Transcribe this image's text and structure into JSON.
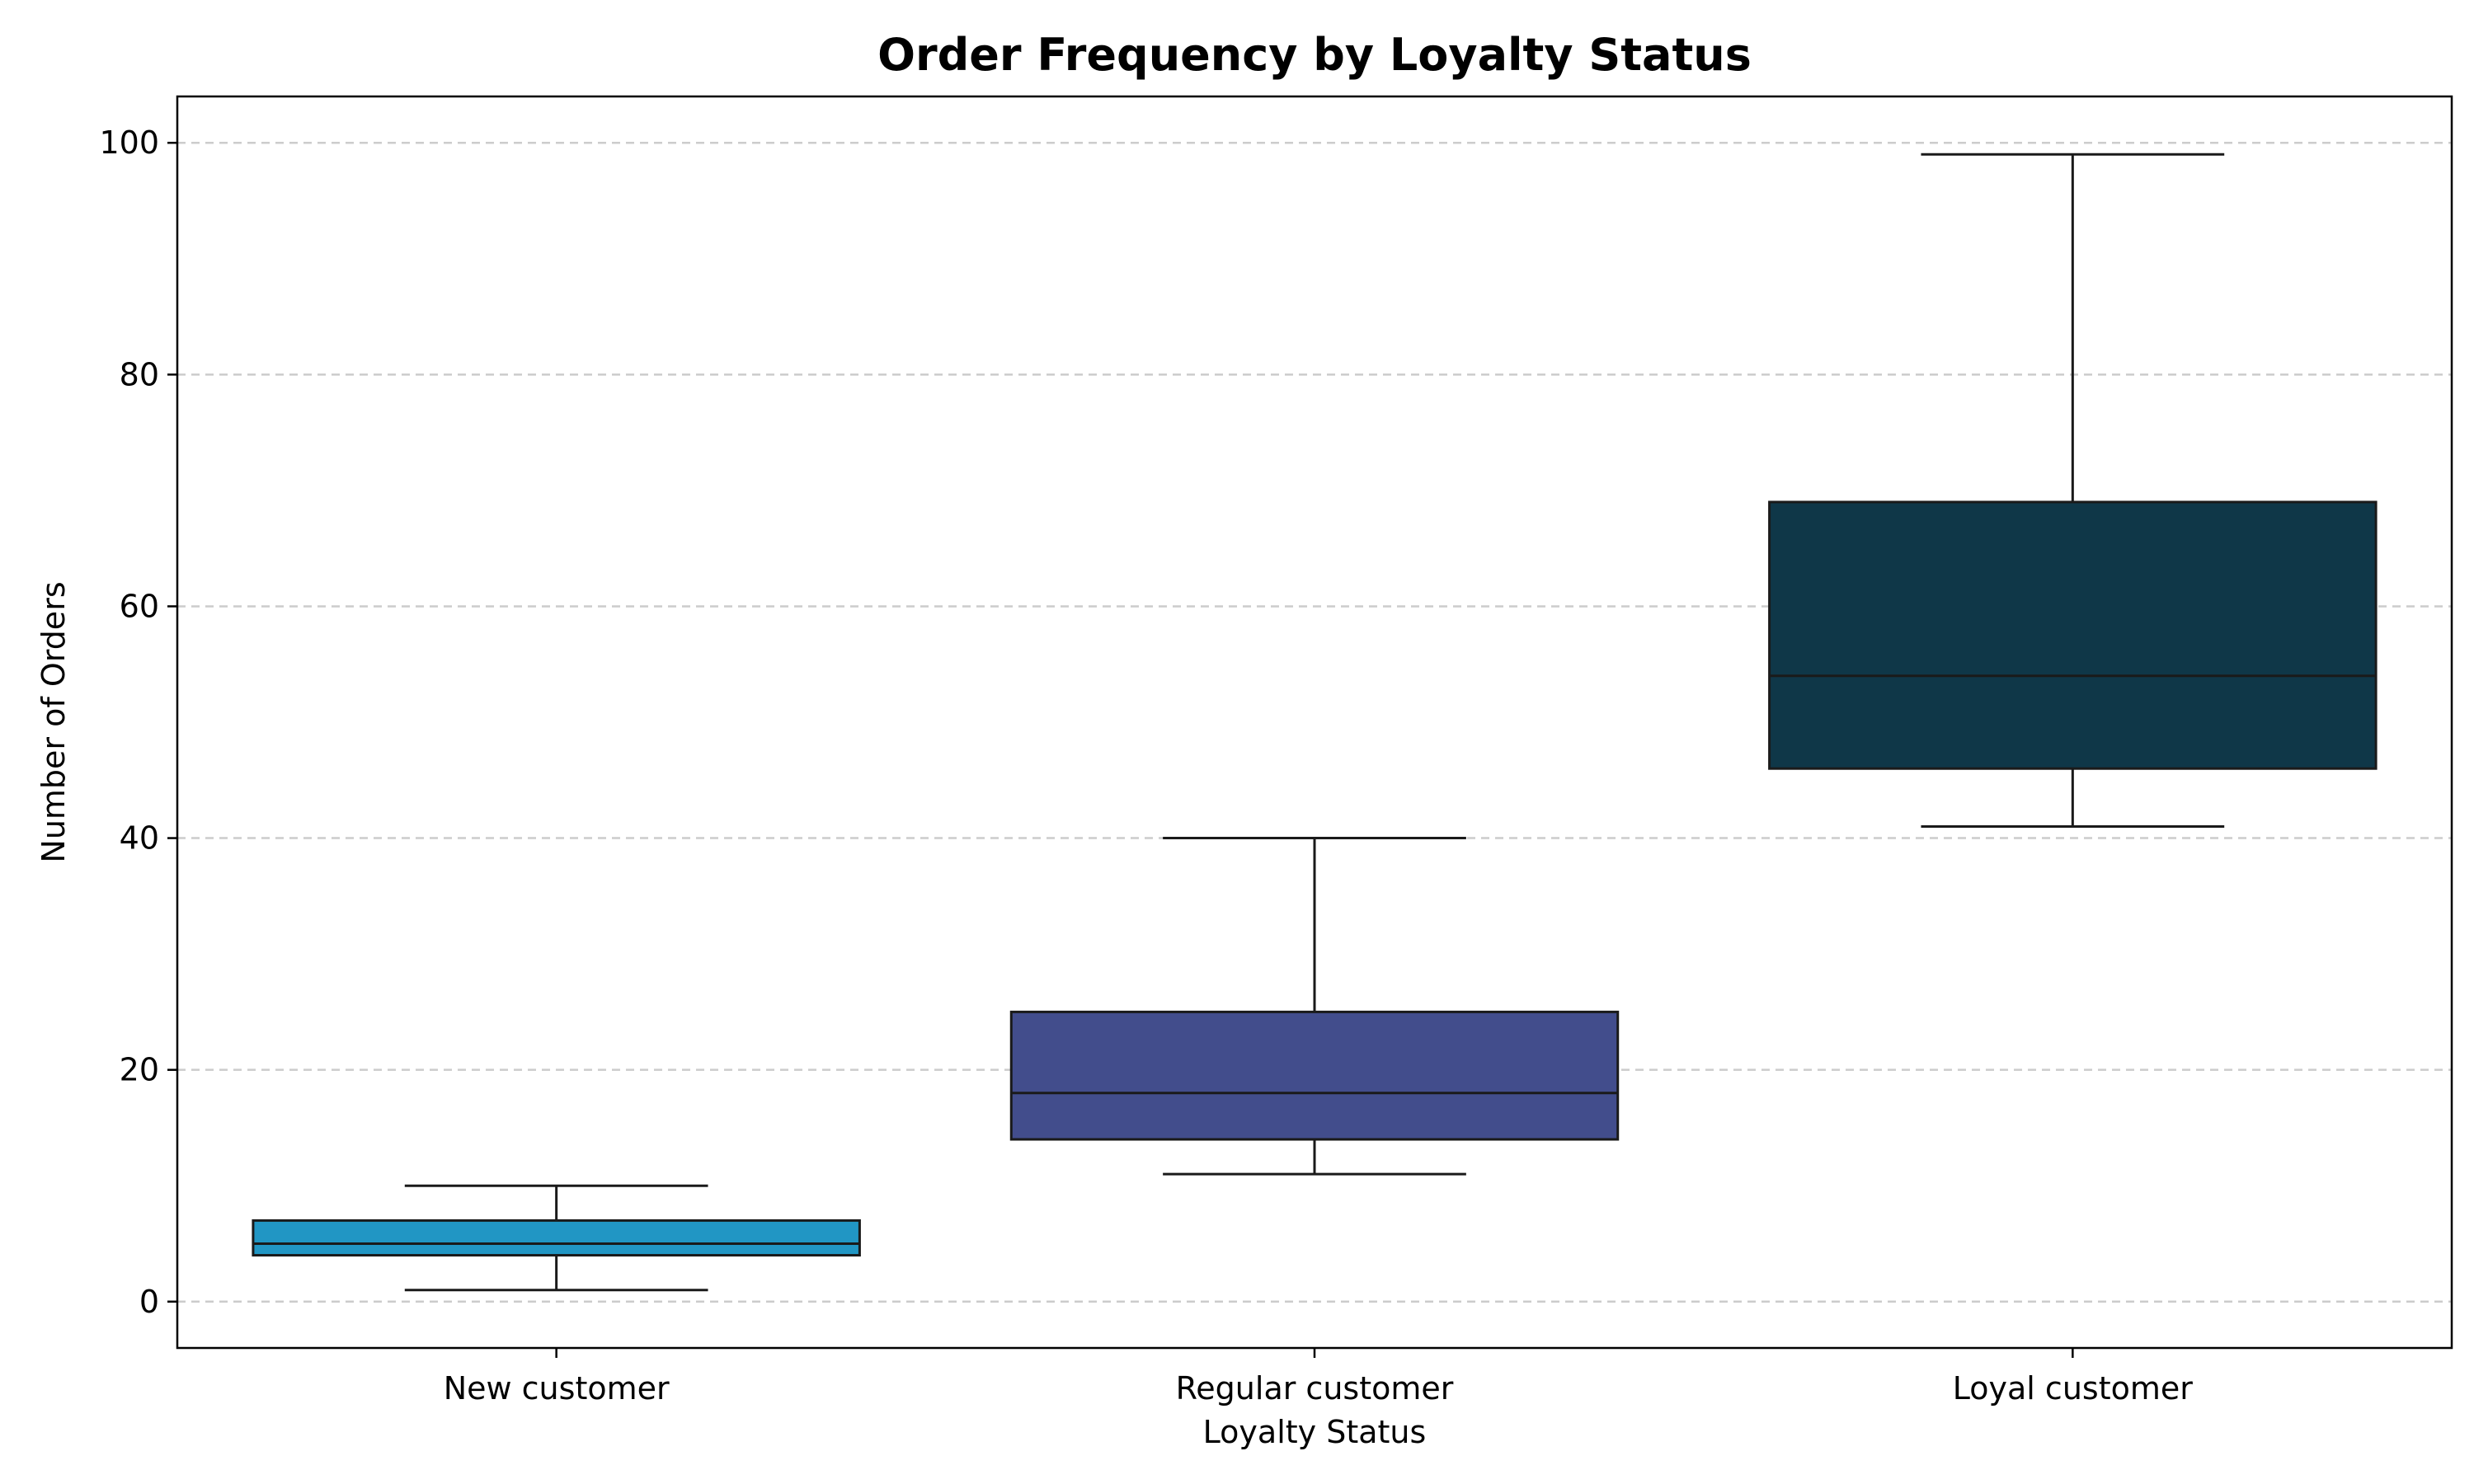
{
  "chart_data": {
    "type": "box",
    "title": "Order Frequency by Loyalty Status",
    "xlabel": "Loyalty Status",
    "ylabel": "Number of Orders",
    "ylim": [
      -4,
      104
    ],
    "yticks": [
      0,
      20,
      40,
      60,
      80,
      100
    ],
    "grid": true,
    "categories": [
      "New customer",
      "Regular customer",
      "Loyal customer"
    ],
    "boxes": [
      {
        "name": "New customer",
        "whisker_low": 1,
        "q1": 4,
        "median": 5,
        "q3": 7,
        "whisker_high": 10,
        "color": "#2196c4"
      },
      {
        "name": "Regular customer",
        "whisker_low": 11,
        "q1": 14,
        "median": 18,
        "q3": 25,
        "whisker_high": 40,
        "color": "#424d8c"
      },
      {
        "name": "Loyal customer",
        "whisker_low": 41,
        "q1": 46,
        "median": 54,
        "q3": 69,
        "whisker_high": 99,
        "color": "#0f3748"
      }
    ]
  }
}
